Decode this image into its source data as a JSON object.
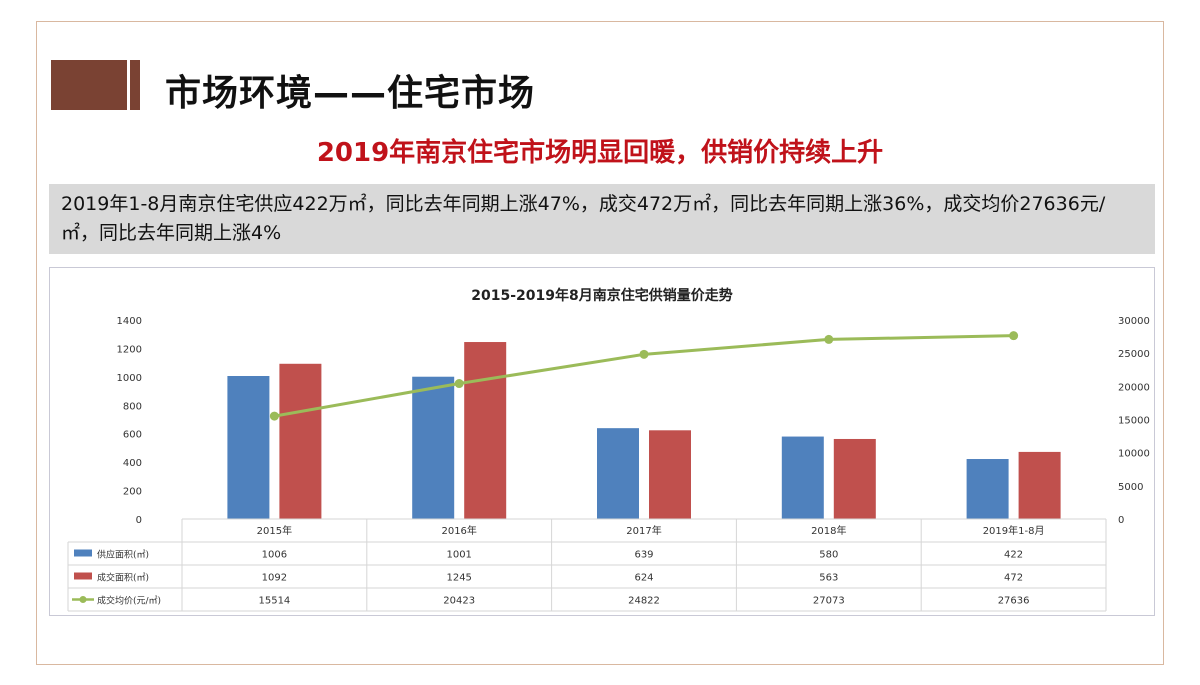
{
  "slide": {
    "title": "市场环境——住宅市场",
    "subtitle": "2019年南京住宅市场明显回暖，供销价持续上升",
    "summary": "2019年1-8月南京住宅供应422万㎡，同比去年同期上涨47%，成交472万㎡，同比去年同期上涨36%，成交均价27636元/㎡，同比去年同期上涨4%"
  },
  "chart_data": {
    "type": "bar",
    "title": "2015-2019年8月南京住宅供销量价走势",
    "categories": [
      "2015年",
      "2016年",
      "2017年",
      "2018年",
      "2019年1-8月"
    ],
    "series": [
      {
        "name": "供应面积(㎡)",
        "type": "bar",
        "axis": "left",
        "color": "#4f81bd",
        "values": [
          1006,
          1001,
          639,
          580,
          422
        ]
      },
      {
        "name": "成交面积(㎡)",
        "type": "bar",
        "axis": "left",
        "color": "#c0504d",
        "values": [
          1092,
          1245,
          624,
          563,
          472
        ]
      },
      {
        "name": "成交均价(元/㎡)",
        "type": "line",
        "axis": "right",
        "color": "#9bbb59",
        "values": [
          15514,
          20423,
          24822,
          27073,
          27636
        ]
      }
    ],
    "ylim": [
      0,
      1400
    ],
    "yticks": [
      "0",
      "200",
      "400",
      "600",
      "800",
      "1000",
      "1200",
      "1400"
    ],
    "y2lim": [
      0,
      30000
    ],
    "y2ticks": [
      "0",
      "5000",
      "10000",
      "15000",
      "20000",
      "25000",
      "30000"
    ],
    "grid": false,
    "legend": "data-table-bottom"
  }
}
